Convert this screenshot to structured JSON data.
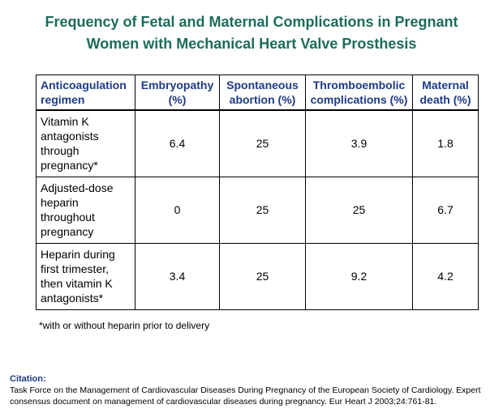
{
  "title": {
    "line1": "Frequency of Fetal and Maternal Complications in Pregnant",
    "line2": "Women with Mechanical Heart Valve Prosthesis"
  },
  "table": {
    "headers": [
      [
        "Anticoagulation",
        "regimen"
      ],
      [
        "Embryopathy",
        "(%)"
      ],
      [
        "Spontaneous",
        "abortion (%)"
      ],
      [
        "Thromboembolic",
        "complications (%)"
      ],
      [
        "Maternal",
        "death (%)"
      ]
    ],
    "rows": [
      {
        "regimen": [
          "Vitamin K",
          "antagonists",
          "through",
          "pregnancy*"
        ],
        "embryopathy": "6.4",
        "abortion": "25",
        "thromboembolic": "3.9",
        "death": "1.8"
      },
      {
        "regimen": [
          "Adjusted-dose",
          "heparin",
          "throughout",
          "pregnancy"
        ],
        "embryopathy": "0",
        "abortion": "25",
        "thromboembolic": "25",
        "death": "6.7"
      },
      {
        "regimen": [
          "Heparin during",
          "first trimester,",
          "then vitamin K",
          "antagonists*"
        ],
        "embryopathy": "3.4",
        "abortion": "25",
        "thromboembolic": "9.2",
        "death": "4.2"
      }
    ]
  },
  "footnote": "*with or without heparin prior to delivery",
  "citation": {
    "label": "Citation:",
    "text_line1": "Task Force on the Management of Cardiovascular Diseases During Pregnancy of the European Society of Cardiology. Expert",
    "text_line2": "consensus document on management of cardiovascular diseases during pregnancy. Eur Heart J 2003;24:761-81."
  }
}
